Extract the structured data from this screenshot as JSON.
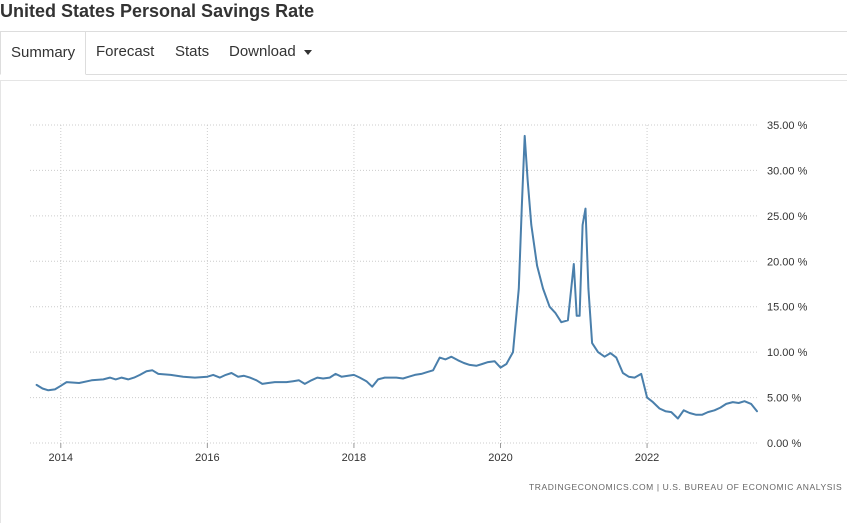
{
  "page": {
    "title": "United States Personal Savings Rate"
  },
  "tabs": [
    {
      "label": "Summary",
      "active": true
    },
    {
      "label": "Forecast"
    },
    {
      "label": "Stats"
    },
    {
      "label": "Download",
      "icon": "caret-down-icon"
    }
  ],
  "source_note": "TRADINGECONOMICS.COM  |  U.S. BUREAU OF ECONOMIC ANALYSIS",
  "colors": {
    "line": "#4a7fab",
    "grid": "#cccccc",
    "text": "#333333"
  },
  "chart_data": {
    "type": "line",
    "title": "",
    "xlabel": "",
    "ylabel": "",
    "ylim": [
      0,
      35
    ],
    "xlim": [
      2013.58,
      2023.5
    ],
    "y_ticks": [
      "0.00 %",
      "5.00 %",
      "10.00 %",
      "15.00 %",
      "20.00 %",
      "25.00 %",
      "30.00 %",
      "35.00 %"
    ],
    "x_ticks": [
      "2014",
      "2016",
      "2018",
      "2020",
      "2022"
    ],
    "grid": true,
    "series": [
      {
        "points": [
          [
            2013.67,
            6.4
          ],
          [
            2013.75,
            6.0
          ],
          [
            2013.83,
            5.8
          ],
          [
            2013.92,
            5.9
          ],
          [
            2014.0,
            6.3
          ],
          [
            2014.08,
            6.7
          ],
          [
            2014.25,
            6.6
          ],
          [
            2014.42,
            6.9
          ],
          [
            2014.58,
            7.0
          ],
          [
            2014.67,
            7.2
          ],
          [
            2014.75,
            7.0
          ],
          [
            2014.83,
            7.2
          ],
          [
            2014.92,
            7.0
          ],
          [
            2015.0,
            7.2
          ],
          [
            2015.08,
            7.5
          ],
          [
            2015.17,
            7.9
          ],
          [
            2015.25,
            8.0
          ],
          [
            2015.33,
            7.6
          ],
          [
            2015.5,
            7.5
          ],
          [
            2015.67,
            7.3
          ],
          [
            2015.83,
            7.2
          ],
          [
            2016.0,
            7.3
          ],
          [
            2016.08,
            7.5
          ],
          [
            2016.17,
            7.2
          ],
          [
            2016.25,
            7.5
          ],
          [
            2016.33,
            7.7
          ],
          [
            2016.42,
            7.3
          ],
          [
            2016.5,
            7.4
          ],
          [
            2016.58,
            7.2
          ],
          [
            2016.67,
            6.9
          ],
          [
            2016.75,
            6.5
          ],
          [
            2016.83,
            6.6
          ],
          [
            2016.92,
            6.7
          ],
          [
            2017.0,
            6.7
          ],
          [
            2017.08,
            6.7
          ],
          [
            2017.17,
            6.8
          ],
          [
            2017.25,
            6.9
          ],
          [
            2017.33,
            6.5
          ],
          [
            2017.42,
            6.9
          ],
          [
            2017.5,
            7.2
          ],
          [
            2017.58,
            7.1
          ],
          [
            2017.67,
            7.2
          ],
          [
            2017.75,
            7.6
          ],
          [
            2017.83,
            7.3
          ],
          [
            2017.92,
            7.4
          ],
          [
            2018.0,
            7.5
          ],
          [
            2018.08,
            7.2
          ],
          [
            2018.17,
            6.8
          ],
          [
            2018.25,
            6.2
          ],
          [
            2018.33,
            7.0
          ],
          [
            2018.42,
            7.2
          ],
          [
            2018.58,
            7.2
          ],
          [
            2018.67,
            7.1
          ],
          [
            2018.75,
            7.3
          ],
          [
            2018.83,
            7.5
          ],
          [
            2018.92,
            7.6
          ],
          [
            2019.0,
            7.8
          ],
          [
            2019.08,
            8.0
          ],
          [
            2019.17,
            9.4
          ],
          [
            2019.25,
            9.2
          ],
          [
            2019.33,
            9.5
          ],
          [
            2019.42,
            9.1
          ],
          [
            2019.5,
            8.8
          ],
          [
            2019.58,
            8.6
          ],
          [
            2019.67,
            8.5
          ],
          [
            2019.75,
            8.7
          ],
          [
            2019.83,
            8.9
          ],
          [
            2019.92,
            9.0
          ],
          [
            2020.0,
            8.3
          ],
          [
            2020.08,
            8.7
          ],
          [
            2020.17,
            10.0
          ],
          [
            2020.25,
            17.0
          ],
          [
            2020.29,
            26.0
          ],
          [
            2020.33,
            33.8
          ],
          [
            2020.37,
            29.0
          ],
          [
            2020.42,
            24.0
          ],
          [
            2020.5,
            19.5
          ],
          [
            2020.58,
            17.0
          ],
          [
            2020.67,
            15.0
          ],
          [
            2020.75,
            14.3
          ],
          [
            2020.83,
            13.3
          ],
          [
            2020.92,
            13.5
          ],
          [
            2021.0,
            19.7
          ],
          [
            2021.04,
            14.0
          ],
          [
            2021.08,
            14.0
          ],
          [
            2021.12,
            24.0
          ],
          [
            2021.16,
            25.8
          ],
          [
            2021.2,
            17.0
          ],
          [
            2021.25,
            11.0
          ],
          [
            2021.33,
            10.0
          ],
          [
            2021.42,
            9.5
          ],
          [
            2021.5,
            9.9
          ],
          [
            2021.58,
            9.4
          ],
          [
            2021.67,
            7.7
          ],
          [
            2021.75,
            7.3
          ],
          [
            2021.83,
            7.2
          ],
          [
            2021.92,
            7.6
          ],
          [
            2022.0,
            5.0
          ],
          [
            2022.08,
            4.5
          ],
          [
            2022.17,
            3.8
          ],
          [
            2022.25,
            3.5
          ],
          [
            2022.33,
            3.4
          ],
          [
            2022.42,
            2.7
          ],
          [
            2022.5,
            3.6
          ],
          [
            2022.58,
            3.3
          ],
          [
            2022.67,
            3.1
          ],
          [
            2022.75,
            3.1
          ],
          [
            2022.83,
            3.4
          ],
          [
            2022.92,
            3.6
          ],
          [
            2023.0,
            3.9
          ],
          [
            2023.08,
            4.3
          ],
          [
            2023.17,
            4.5
          ],
          [
            2023.25,
            4.4
          ],
          [
            2023.33,
            4.6
          ],
          [
            2023.42,
            4.3
          ],
          [
            2023.5,
            3.5
          ]
        ]
      }
    ]
  }
}
